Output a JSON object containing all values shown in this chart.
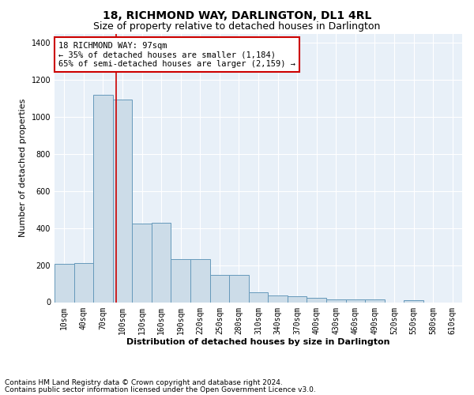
{
  "title": "18, RICHMOND WAY, DARLINGTON, DL1 4RL",
  "subtitle": "Size of property relative to detached houses in Darlington",
  "xlabel": "Distribution of detached houses by size in Darlington",
  "ylabel": "Number of detached properties",
  "bar_color": "#ccdce8",
  "bar_edge_color": "#6699bb",
  "categories": [
    "10sqm",
    "40sqm",
    "70sqm",
    "100sqm",
    "130sqm",
    "160sqm",
    "190sqm",
    "220sqm",
    "250sqm",
    "280sqm",
    "310sqm",
    "340sqm",
    "370sqm",
    "400sqm",
    "430sqm",
    "460sqm",
    "490sqm",
    "520sqm",
    "550sqm",
    "580sqm",
    "610sqm"
  ],
  "values": [
    207,
    210,
    1120,
    1095,
    425,
    428,
    232,
    232,
    148,
    148,
    55,
    38,
    30,
    22,
    13,
    15,
    15,
    0,
    12,
    0,
    0
  ],
  "ylim": [
    0,
    1450
  ],
  "yticks": [
    0,
    200,
    400,
    600,
    800,
    1000,
    1200,
    1400
  ],
  "property_line_x": 2.67,
  "annotation_text": "18 RICHMOND WAY: 97sqm\n← 35% of detached houses are smaller (1,184)\n65% of semi-detached houses are larger (2,159) →",
  "annotation_box_color": "#ffffff",
  "annotation_border_color": "#cc0000",
  "footer_line1": "Contains HM Land Registry data © Crown copyright and database right 2024.",
  "footer_line2": "Contains public sector information licensed under the Open Government Licence v3.0.",
  "bg_color": "#e8f0f8",
  "grid_color": "#ffffff",
  "title_fontsize": 10,
  "subtitle_fontsize": 9,
  "axis_label_fontsize": 8,
  "tick_fontsize": 7,
  "annotation_fontsize": 7.5,
  "footer_fontsize": 6.5
}
